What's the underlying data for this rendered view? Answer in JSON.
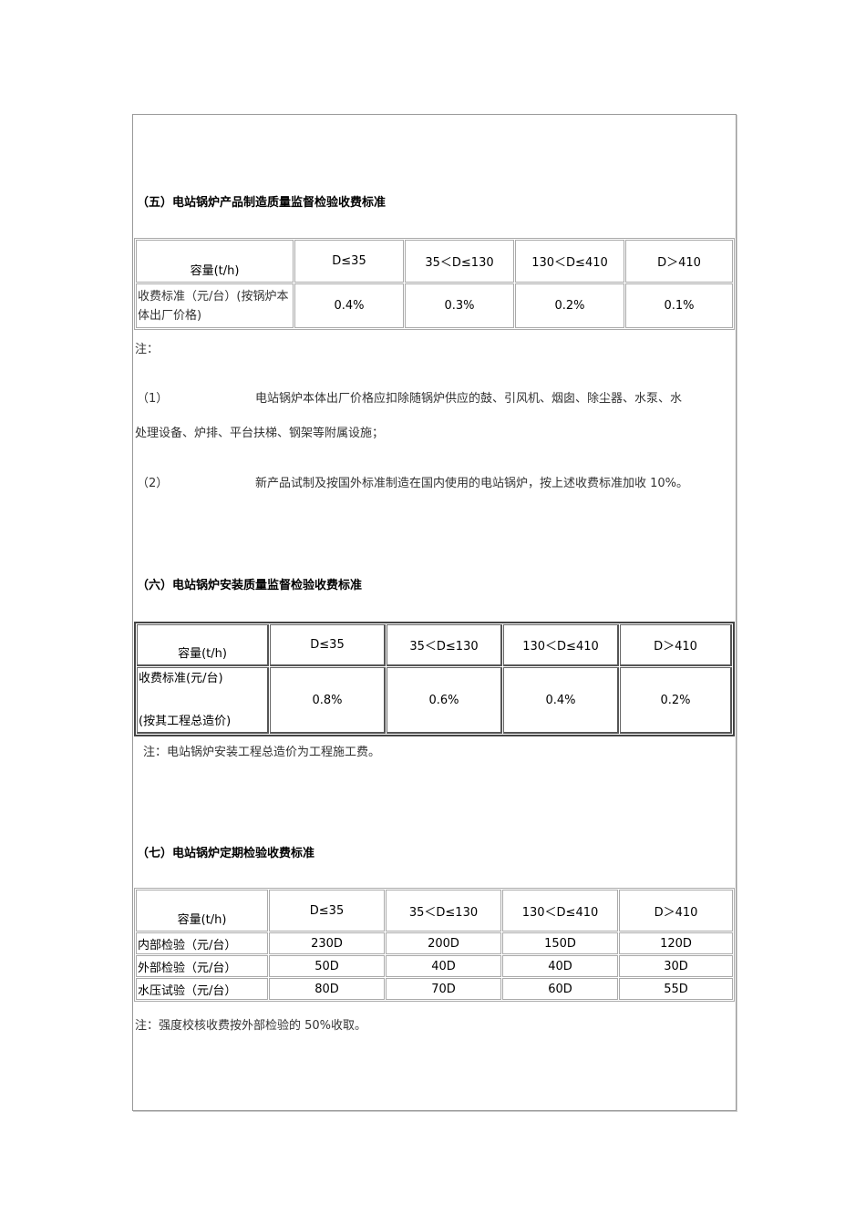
{
  "section5": {
    "title": "（五）电站锅炉产品制造质量监督检验收费标准",
    "headers": [
      "容量(t/h)",
      "D≤35",
      "35＜D≤130",
      "130＜D≤410",
      "D＞410"
    ],
    "row": {
      "label": "收费标准（元/台）(按锅炉本体出厂价格)",
      "values": [
        "0.4%",
        "0.3%",
        "0.2%",
        "0.1%"
      ]
    },
    "note_label": "注：",
    "notes": [
      {
        "num": "（1）",
        "text": "电站锅炉本体出厂价格应扣除随锅炉供应的鼓、引风机、烟囱、除尘器、水泵、水",
        "cont": "处理设备、炉排、平台扶梯、钢架等附属设施；"
      },
      {
        "num": "（2）",
        "text": "新产品试制及按国外标准制造在国内使用的电站锅炉，按上述收费标准加收 10%。"
      }
    ]
  },
  "section6": {
    "title": "（六）电站锅炉安装质量监督检验收费标准",
    "headers": [
      "容量(t/h)",
      "D≤35",
      "35＜D≤130",
      "130＜D≤410",
      "D＞410"
    ],
    "row": {
      "label1": "收费标准(元/台)",
      "label2": "(按其工程总造价)",
      "values": [
        "0.8%",
        "0.6%",
        "0.4%",
        "0.2%"
      ]
    },
    "note": "注：电站锅炉安装工程总造价为工程施工费。"
  },
  "section7": {
    "title": "（七）电站锅炉定期检验收费标准",
    "headers": [
      "容量(t/h)",
      "D≤35",
      "35＜D≤130",
      "130＜D≤410",
      "D＞410"
    ],
    "rows": [
      {
        "label": "内部检验（元/台）",
        "values": [
          "230D",
          "200D",
          "150D",
          "120D"
        ]
      },
      {
        "label": "外部检验（元/台）",
        "values": [
          "50D",
          "40D",
          "40D",
          "30D"
        ]
      },
      {
        "label": "水压试验（元/台）",
        "values": [
          "80D",
          "70D",
          "60D",
          "55D"
        ]
      }
    ],
    "note": "注：强度校核收费按外部检验的 50%收取。"
  }
}
